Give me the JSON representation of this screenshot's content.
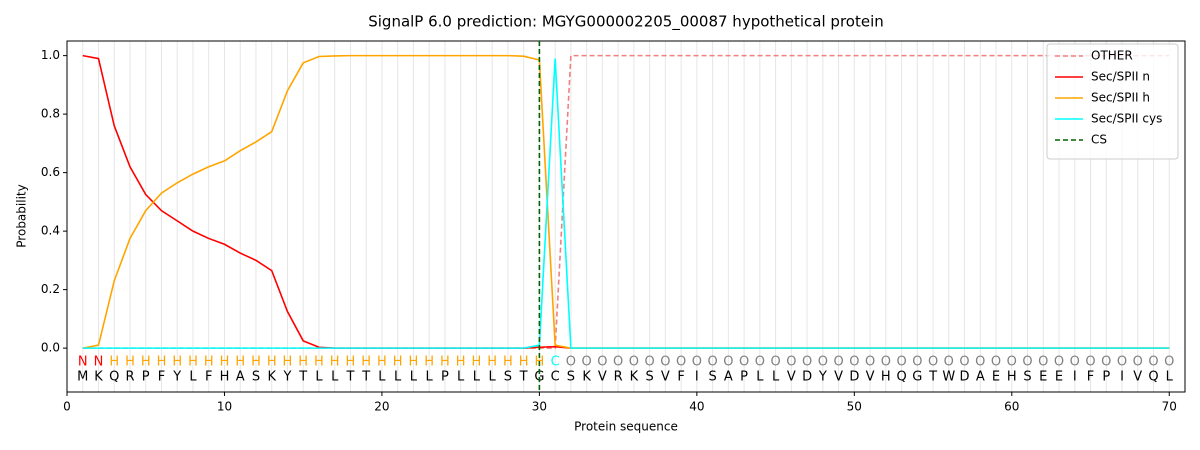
{
  "chart_data": {
    "type": "line",
    "title": "SignalP 6.0 prediction: MGYG000002205_00087 hypothetical protein",
    "x_label": "Protein sequence",
    "y_label": "Probability",
    "xlim": [
      0,
      71
    ],
    "ylim": [
      -0.15,
      1.05
    ],
    "xticks": [
      0,
      10,
      20,
      30,
      40,
      50,
      60,
      70
    ],
    "yticks": [
      {
        "value": 0,
        "label": "0.0"
      },
      {
        "value": 0.2,
        "label": "0.2"
      },
      {
        "value": 0.4,
        "label": "0.4"
      },
      {
        "value": 0.6,
        "label": "0.6"
      },
      {
        "value": 0.8,
        "label": "0.8"
      },
      {
        "value": 1.0,
        "label": "1.0"
      }
    ],
    "legend": "upper right",
    "x": [
      1,
      2,
      3,
      4,
      5,
      6,
      7,
      8,
      9,
      10,
      11,
      12,
      13,
      14,
      15,
      16,
      17,
      18,
      19,
      20,
      21,
      22,
      23,
      24,
      25,
      26,
      27,
      28,
      29,
      30,
      31,
      32,
      33,
      34,
      35,
      36,
      37,
      38,
      39,
      40,
      41,
      42,
      43,
      44,
      45,
      46,
      47,
      48,
      49,
      50,
      51,
      52,
      53,
      54,
      55,
      56,
      57,
      58,
      59,
      60,
      61,
      62,
      63,
      64,
      65,
      66,
      67,
      68,
      69,
      70
    ],
    "sequence": [
      "M",
      "K",
      "Q",
      "R",
      "P",
      "F",
      "Y",
      "L",
      "F",
      "H",
      "A",
      "S",
      "K",
      "Y",
      "T",
      "L",
      "L",
      "T",
      "T",
      "L",
      "L",
      "L",
      "L",
      "P",
      "L",
      "L",
      "L",
      "S",
      "T",
      "G",
      "C",
      "S",
      "K",
      "V",
      "R",
      "K",
      "S",
      "V",
      "F",
      "I",
      "S",
      "A",
      "P",
      "L",
      "L",
      "V",
      "D",
      "Y",
      "V",
      "D",
      "V",
      "H",
      "Q",
      "G",
      "T",
      "W",
      "D",
      "A",
      "E",
      "H",
      "S",
      "E",
      "E",
      "I",
      "F",
      "P",
      "I",
      "V",
      "Q",
      "L"
    ],
    "labels": [
      "N",
      "N",
      "H",
      "H",
      "H",
      "H",
      "H",
      "H",
      "H",
      "H",
      "H",
      "H",
      "H",
      "H",
      "H",
      "H",
      "H",
      "H",
      "H",
      "H",
      "H",
      "H",
      "H",
      "H",
      "H",
      "H",
      "H",
      "H",
      "H",
      "H",
      "C",
      "O",
      "O",
      "O",
      "O",
      "O",
      "O",
      "O",
      "O",
      "O",
      "O",
      "O",
      "O",
      "O",
      "O",
      "O",
      "O",
      "O",
      "O",
      "O",
      "O",
      "O",
      "O",
      "O",
      "O",
      "O",
      "O",
      "O",
      "O",
      "O",
      "O",
      "O",
      "O",
      "O",
      "O",
      "O",
      "O",
      "O",
      "O",
      "O"
    ],
    "label_colors": {
      "N": "red",
      "H": "orange",
      "C": "cyan",
      "O": "gray"
    },
    "series": [
      {
        "name": "OTHER",
        "color": "#f08080",
        "dashed": true,
        "values": [
          0,
          0,
          0,
          0,
          0,
          0,
          0,
          0,
          0,
          0,
          0,
          0,
          0,
          0,
          0,
          0,
          0,
          0,
          0,
          0,
          0,
          0,
          0,
          0,
          0,
          0,
          0,
          0,
          0,
          0,
          0,
          1,
          1,
          1,
          1,
          1,
          1,
          1,
          1,
          1,
          1,
          1,
          1,
          1,
          1,
          1,
          1,
          1,
          1,
          1,
          1,
          1,
          1,
          1,
          1,
          1,
          1,
          1,
          1,
          1,
          1,
          1,
          1,
          1,
          1,
          1,
          1,
          1,
          1,
          1
        ]
      },
      {
        "name": "Sec/SPII n",
        "color": "red",
        "values": [
          1.0,
          0.99,
          0.76,
          0.62,
          0.525,
          0.47,
          0.435,
          0.4,
          0.375,
          0.355,
          0.325,
          0.3,
          0.265,
          0.125,
          0.025,
          0.003,
          0,
          0,
          0,
          0,
          0,
          0,
          0,
          0,
          0,
          0,
          0,
          0,
          0,
          0.003,
          0.005,
          0,
          0,
          0,
          0,
          0,
          0,
          0,
          0,
          0,
          0,
          0,
          0,
          0,
          0,
          0,
          0,
          0,
          0,
          0,
          0,
          0,
          0,
          0,
          0,
          0,
          0,
          0,
          0,
          0,
          0,
          0,
          0,
          0,
          0,
          0,
          0,
          0,
          0,
          0
        ]
      },
      {
        "name": "Sec/SPII h",
        "color": "orange",
        "values": [
          0,
          0.01,
          0.23,
          0.375,
          0.47,
          0.53,
          0.565,
          0.595,
          0.62,
          0.64,
          0.675,
          0.705,
          0.74,
          0.88,
          0.975,
          0.997,
          0.999,
          1,
          1,
          1,
          1,
          1,
          1,
          1,
          1,
          1,
          1,
          1,
          0.998,
          0.985,
          0.01,
          0,
          0,
          0,
          0,
          0,
          0,
          0,
          0,
          0,
          0,
          0,
          0,
          0,
          0,
          0,
          0,
          0,
          0,
          0,
          0,
          0,
          0,
          0,
          0,
          0,
          0,
          0,
          0,
          0,
          0,
          0,
          0,
          0,
          0,
          0,
          0,
          0,
          0,
          0
        ]
      },
      {
        "name": "Sec/SPII cys",
        "color": "cyan",
        "values": [
          0,
          0,
          0,
          0,
          0,
          0,
          0,
          0,
          0,
          0,
          0,
          0,
          0,
          0,
          0,
          0,
          0,
          0,
          0,
          0,
          0,
          0,
          0,
          0,
          0,
          0,
          0,
          0,
          0,
          0.01,
          0.99,
          0,
          0,
          0,
          0,
          0,
          0,
          0,
          0,
          0,
          0,
          0,
          0,
          0,
          0,
          0,
          0,
          0,
          0,
          0,
          0,
          0,
          0,
          0,
          0,
          0,
          0,
          0,
          0,
          0,
          0,
          0,
          0,
          0,
          0,
          0,
          0,
          0,
          0,
          0
        ]
      },
      {
        "name": "CS",
        "color": "darkgreen",
        "dashed": true,
        "x_value": 30
      }
    ]
  }
}
